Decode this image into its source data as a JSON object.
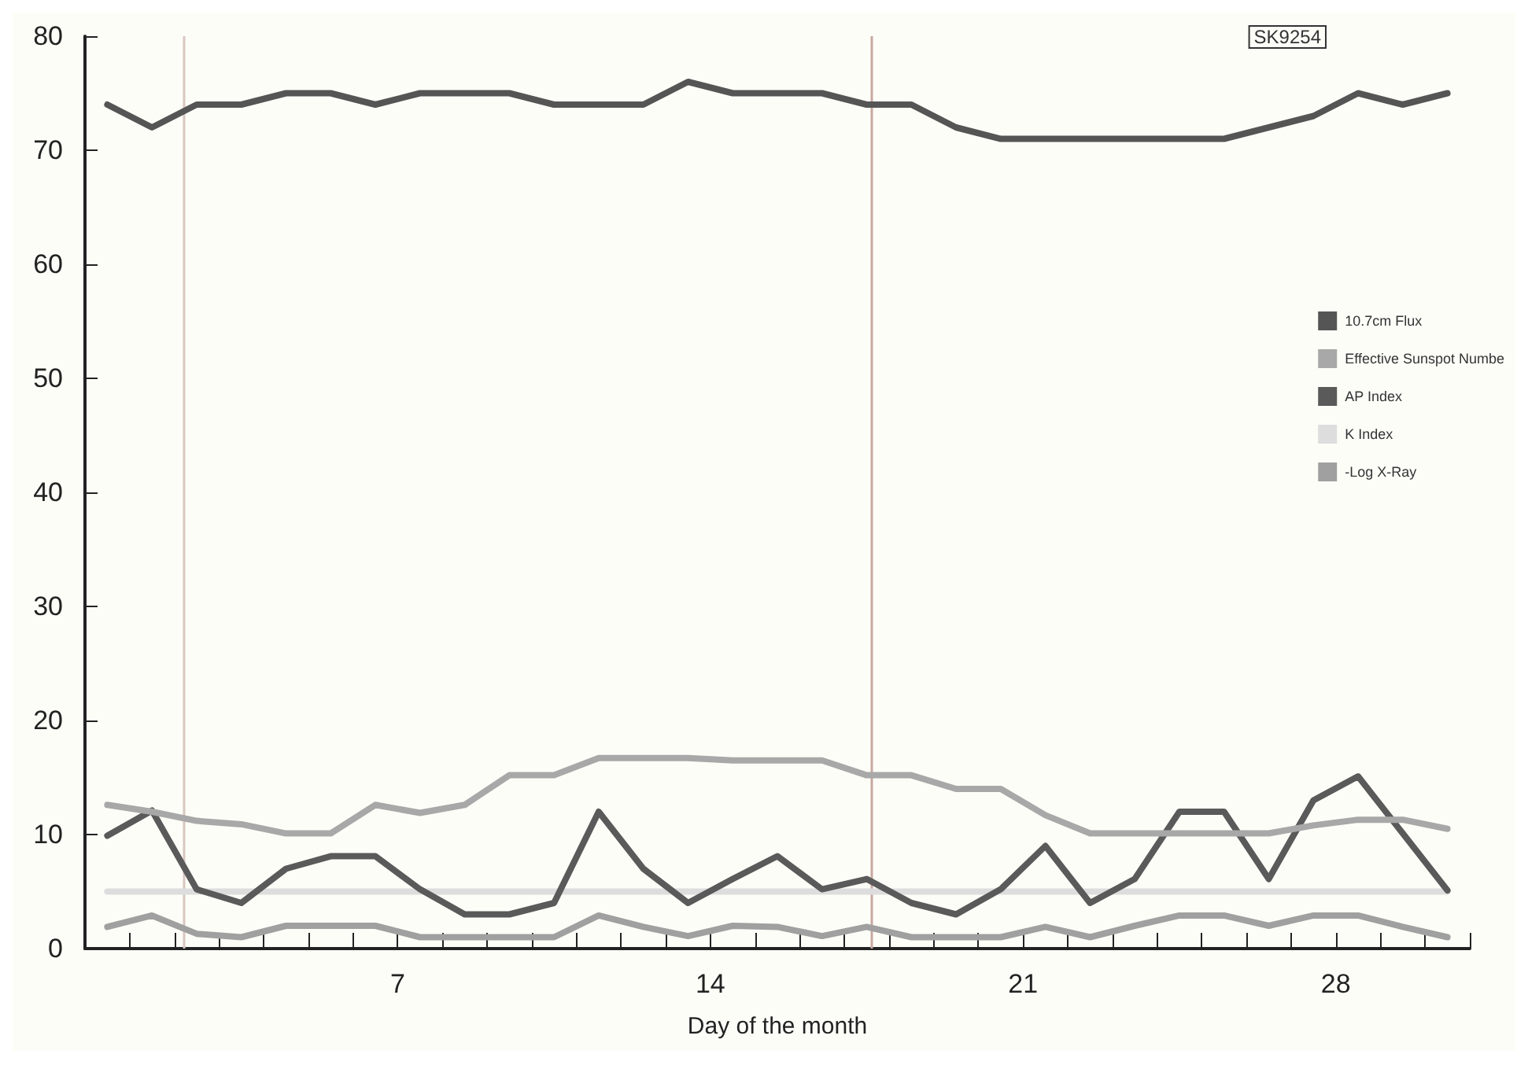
{
  "chart_data": {
    "type": "line",
    "xlabel": "Day of the month",
    "x": [
      0.5,
      1.5,
      2.5,
      3.5,
      4.5,
      5.5,
      6.5,
      7.5,
      8.5,
      9.5,
      10.5,
      11.5,
      12.5,
      13.5,
      14.5,
      15.5,
      16.5,
      17.5,
      18.5,
      19.5,
      20.5,
      21.5,
      22.5,
      23.5,
      24.5,
      25.5,
      26.5,
      27.5,
      28.5,
      29.5,
      30.5
    ],
    "series": [
      {
        "name": "10.7cm Flux",
        "color": "#555555",
        "values": [
          74,
          72,
          74,
          74,
          75,
          75,
          74,
          75,
          75,
          75,
          74,
          74,
          74,
          76,
          75,
          75,
          75,
          74,
          74,
          72,
          71,
          71,
          71,
          71,
          71,
          71,
          72,
          73,
          75,
          74,
          75
        ]
      },
      {
        "name": "Effective Sunspot Numbe",
        "color": "#a8a8a8",
        "values": [
          12.6,
          12,
          11.2,
          10.9,
          10.1,
          10.1,
          12.6,
          11.9,
          12.6,
          15.2,
          15.2,
          16.7,
          16.7,
          16.7,
          16.5,
          16.5,
          16.5,
          15.2,
          15.2,
          14,
          14,
          11.7,
          10.1,
          10.1,
          10.1,
          10.1,
          10.1,
          10.8,
          11.3,
          11.3,
          10.5
        ]
      },
      {
        "name": "AP Index",
        "color": "#5a5a5a",
        "values": [
          9.9,
          12.1,
          5.2,
          4,
          7,
          8.1,
          8.1,
          5.2,
          3,
          3,
          4,
          12,
          7,
          4,
          6.1,
          8.1,
          5.2,
          6.1,
          4,
          3,
          5.2,
          9,
          4,
          6.1,
          12,
          12,
          6.1,
          13,
          15.1,
          10.1,
          5.1
        ]
      },
      {
        "name": "K Index",
        "color": "#dddddd",
        "values": [
          5,
          5,
          5,
          5,
          5,
          5,
          5,
          5,
          5,
          5,
          5,
          5,
          5,
          5,
          5,
          5,
          5,
          5,
          5,
          5,
          5,
          5,
          5,
          5,
          5,
          5,
          5,
          5,
          5,
          5,
          5
        ]
      },
      {
        "name": "-Log X-Ray",
        "color": "#a0a0a0",
        "values": [
          1.9,
          2.9,
          1.3,
          1,
          2,
          2,
          2,
          1,
          1,
          1,
          1,
          2.9,
          1.9,
          1.1,
          2,
          1.9,
          1.1,
          1.9,
          1,
          1,
          1,
          1.9,
          1,
          2,
          2.9,
          2.9,
          2,
          2.9,
          2.9,
          1.9,
          1
        ]
      }
    ],
    "xlim": [
      0,
      31
    ],
    "xticks": [
      {
        "value": 1,
        "label": null
      },
      {
        "value": 2,
        "label": null
      },
      {
        "value": 3,
        "label": null
      },
      {
        "value": 4,
        "label": null
      },
      {
        "value": 5,
        "label": null
      },
      {
        "value": 6,
        "label": null
      },
      7,
      {
        "value": 8,
        "label": null
      },
      {
        "value": 9,
        "label": null
      },
      {
        "value": 10,
        "label": null
      },
      {
        "value": 11,
        "label": null
      },
      {
        "value": 12,
        "label": null
      },
      {
        "value": 13,
        "label": null
      },
      14,
      {
        "value": 15,
        "label": null
      },
      {
        "value": 16,
        "label": null
      },
      {
        "value": 17,
        "label": null
      },
      {
        "value": 18,
        "label": null
      },
      {
        "value": 19,
        "label": null
      },
      {
        "value": 20,
        "label": null
      },
      21,
      {
        "value": 22,
        "label": null
      },
      {
        "value": 23,
        "label": null
      },
      {
        "value": 24,
        "label": null
      },
      {
        "value": 25,
        "label": null
      },
      {
        "value": 26,
        "label": null
      },
      {
        "value": 27,
        "label": null
      },
      28,
      {
        "value": 29,
        "label": null
      },
      {
        "value": 30,
        "label": null
      },
      {
        "value": 31,
        "label": null
      }
    ],
    "ylim": [
      0,
      80
    ],
    "yticks": [
      0,
      10,
      20,
      30,
      40,
      50,
      60,
      70,
      80
    ],
    "ref_lines": [
      {
        "axis": "x",
        "value": 2.2,
        "color": "#d8c8c0"
      },
      {
        "axis": "x",
        "value": 17.6,
        "color": "#c8a8a0"
      }
    ],
    "annotations": [
      "SK9254"
    ],
    "legend": "right",
    "grid": false,
    "marker": "none",
    "line_style": "solid"
  }
}
